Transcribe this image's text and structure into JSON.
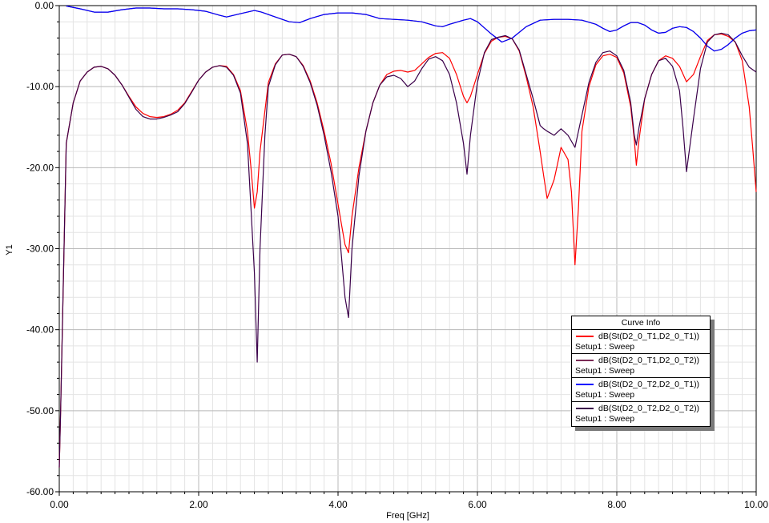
{
  "chart_data": {
    "type": "line",
    "xlabel": "Freq [GHz]",
    "ylabel": "Y1",
    "xlim": [
      0,
      10
    ],
    "ylim": [
      -60,
      0
    ],
    "x_ticks": [
      "0.00",
      "2.00",
      "4.00",
      "6.00",
      "8.00",
      "10.00"
    ],
    "y_ticks": [
      "0.00",
      "-10.00",
      "-20.00",
      "-30.00",
      "-40.00",
      "-50.00",
      "-60.00"
    ],
    "grid": true,
    "legend_title": "Curve Info",
    "legend_position": "bottom-right",
    "series": [
      {
        "name": "dB(St(D2_0_T1,D2_0_T1))",
        "sub": "Setup1 : Sweep",
        "color": "#ff0000",
        "x": [
          0,
          0.02,
          0.1,
          0.2,
          0.3,
          0.4,
          0.5,
          0.6,
          0.7,
          0.8,
          0.9,
          1.0,
          1.1,
          1.2,
          1.3,
          1.4,
          1.5,
          1.6,
          1.7,
          1.8,
          1.9,
          2.0,
          2.1,
          2.2,
          2.3,
          2.4,
          2.5,
          2.6,
          2.7,
          2.75,
          2.8,
          2.84,
          2.88,
          2.95,
          3.0,
          3.1,
          3.2,
          3.3,
          3.4,
          3.5,
          3.6,
          3.7,
          3.8,
          3.9,
          4.0,
          4.05,
          4.1,
          4.15,
          4.2,
          4.3,
          4.4,
          4.5,
          4.6,
          4.7,
          4.8,
          4.9,
          5.0,
          5.1,
          5.2,
          5.3,
          5.4,
          5.5,
          5.6,
          5.7,
          5.8,
          5.85,
          5.9,
          6.0,
          6.1,
          6.2,
          6.3,
          6.4,
          6.5,
          6.6,
          6.7,
          6.8,
          6.9,
          6.95,
          7.0,
          7.1,
          7.15,
          7.2,
          7.3,
          7.35,
          7.4,
          7.45,
          7.5,
          7.6,
          7.7,
          7.8,
          7.9,
          8.0,
          8.1,
          8.2,
          8.25,
          8.28,
          8.32,
          8.4,
          8.5,
          8.6,
          8.7,
          8.8,
          8.9,
          9.0,
          9.1,
          9.2,
          9.3,
          9.4,
          9.5,
          9.6,
          9.7,
          9.8,
          9.9,
          9.95,
          10.0
        ],
        "y": [
          -57,
          -50,
          -17,
          -12,
          -9.3,
          -8.2,
          -7.6,
          -7.5,
          -7.8,
          -8.6,
          -9.8,
          -11.2,
          -12.5,
          -13.3,
          -13.7,
          -13.8,
          -13.7,
          -13.4,
          -12.9,
          -12,
          -10.6,
          -9.2,
          -8.2,
          -7.6,
          -7.4,
          -7.5,
          -8.5,
          -10.5,
          -15.5,
          -20,
          -25,
          -23,
          -18,
          -13,
          -9.5,
          -7.2,
          -6.1,
          -6.0,
          -6.3,
          -7.4,
          -9.3,
          -12,
          -15.5,
          -19.5,
          -24.5,
          -27,
          -29.5,
          -30.5,
          -26,
          -20,
          -15.5,
          -12,
          -9.8,
          -8.5,
          -8.1,
          -8.0,
          -8.2,
          -8.0,
          -7.2,
          -6.4,
          -5.9,
          -5.8,
          -6.5,
          -8.5,
          -11.2,
          -12,
          -11.2,
          -8.5,
          -5.9,
          -4.4,
          -3.9,
          -3.8,
          -4.1,
          -5.6,
          -8.8,
          -12.5,
          -18,
          -21,
          -23.8,
          -21.5,
          -19.5,
          -17.5,
          -19,
          -23,
          -32,
          -25,
          -15.5,
          -10,
          -7.3,
          -6.2,
          -6.0,
          -6.4,
          -8.3,
          -12.5,
          -16.5,
          -19.7,
          -16.5,
          -11.5,
          -8.5,
          -6.8,
          -6.2,
          -6.5,
          -7.5,
          -9.4,
          -8.5,
          -6.3,
          -4.3,
          -3.6,
          -3.5,
          -3.8,
          -4.5,
          -6.8,
          -12.5,
          -17.5,
          -23
        ]
      },
      {
        "name": "dB(St(D2_0_T1,D2_0_T2))",
        "sub": "Setup1 : Sweep",
        "color": "#7b2a55",
        "x": [
          0.1,
          0.3,
          0.5,
          0.7,
          0.9,
          1.1,
          1.3,
          1.5,
          1.7,
          1.9,
          2.1,
          2.3,
          2.4,
          2.6,
          2.8,
          2.9,
          3.1,
          3.3,
          3.45,
          3.6,
          3.8,
          4.0,
          4.2,
          4.4,
          4.6,
          4.8,
          5.0,
          5.2,
          5.4,
          5.5,
          5.6,
          5.8,
          5.9,
          6.0,
          6.2,
          6.35,
          6.5,
          6.7,
          6.9,
          7.1,
          7.3,
          7.5,
          7.7,
          7.8,
          7.9,
          8.0,
          8.1,
          8.2,
          8.3,
          8.4,
          8.5,
          8.6,
          8.7,
          8.8,
          8.9,
          9.0,
          9.1,
          9.2,
          9.3,
          9.4,
          9.5,
          9.6,
          9.7,
          9.8,
          9.9,
          10.0
        ],
        "y": [
          -0.05,
          -0.4,
          -0.8,
          -0.8,
          -0.5,
          -0.3,
          -0.3,
          -0.4,
          -0.4,
          -0.5,
          -0.7,
          -1.2,
          -1.4,
          -1.0,
          -0.6,
          -0.8,
          -1.4,
          -2.0,
          -2.1,
          -1.6,
          -1.1,
          -0.9,
          -0.9,
          -1.1,
          -1.6,
          -1.7,
          -1.8,
          -2.0,
          -2.5,
          -2.6,
          -2.3,
          -1.8,
          -1.6,
          -2.0,
          -3.5,
          -4.5,
          -4.0,
          -2.6,
          -1.8,
          -1.7,
          -1.7,
          -1.8,
          -2.3,
          -2.8,
          -3.2,
          -3.0,
          -2.5,
          -2.1,
          -2.1,
          -2.4,
          -3.0,
          -3.4,
          -3.3,
          -2.8,
          -2.6,
          -2.7,
          -3.2,
          -4.0,
          -5.0,
          -5.6,
          -5.4,
          -4.8,
          -4.0,
          -3.4,
          -3.1,
          -3.0
        ]
      },
      {
        "name": "dB(St(D2_0_T2,D2_0_T1))",
        "sub": "Setup1 : Sweep",
        "color": "#0000ff",
        "x": [
          0.1,
          0.3,
          0.5,
          0.7,
          0.9,
          1.1,
          1.3,
          1.5,
          1.7,
          1.9,
          2.1,
          2.3,
          2.4,
          2.6,
          2.8,
          2.9,
          3.1,
          3.3,
          3.45,
          3.6,
          3.8,
          4.0,
          4.2,
          4.4,
          4.6,
          4.8,
          5.0,
          5.2,
          5.4,
          5.5,
          5.6,
          5.8,
          5.9,
          6.0,
          6.2,
          6.35,
          6.5,
          6.7,
          6.9,
          7.1,
          7.3,
          7.5,
          7.7,
          7.8,
          7.9,
          8.0,
          8.1,
          8.2,
          8.3,
          8.4,
          8.5,
          8.6,
          8.7,
          8.8,
          8.9,
          9.0,
          9.1,
          9.2,
          9.3,
          9.4,
          9.5,
          9.6,
          9.7,
          9.8,
          9.9,
          10.0
        ],
        "y": [
          -0.05,
          -0.4,
          -0.8,
          -0.8,
          -0.5,
          -0.3,
          -0.3,
          -0.4,
          -0.4,
          -0.5,
          -0.7,
          -1.2,
          -1.4,
          -1.0,
          -0.6,
          -0.8,
          -1.4,
          -2.0,
          -2.1,
          -1.6,
          -1.1,
          -0.9,
          -0.9,
          -1.1,
          -1.6,
          -1.7,
          -1.8,
          -2.0,
          -2.5,
          -2.6,
          -2.3,
          -1.8,
          -1.6,
          -2.0,
          -3.5,
          -4.5,
          -4.0,
          -2.6,
          -1.8,
          -1.7,
          -1.7,
          -1.8,
          -2.3,
          -2.8,
          -3.2,
          -3.0,
          -2.5,
          -2.1,
          -2.1,
          -2.4,
          -3.0,
          -3.4,
          -3.3,
          -2.8,
          -2.6,
          -2.7,
          -3.2,
          -4.0,
          -5.0,
          -5.6,
          -5.4,
          -4.8,
          -4.0,
          -3.4,
          -3.1,
          -3.0
        ]
      },
      {
        "name": "dB(St(D2_0_T2,D2_0_T2))",
        "sub": "Setup1 : Sweep",
        "color": "#3a004a",
        "x": [
          0,
          0.02,
          0.1,
          0.2,
          0.3,
          0.4,
          0.5,
          0.6,
          0.7,
          0.8,
          0.9,
          1.0,
          1.1,
          1.2,
          1.3,
          1.4,
          1.5,
          1.6,
          1.7,
          1.8,
          1.9,
          2.0,
          2.1,
          2.2,
          2.3,
          2.4,
          2.5,
          2.6,
          2.7,
          2.75,
          2.8,
          2.84,
          2.88,
          2.95,
          3.0,
          3.1,
          3.2,
          3.3,
          3.4,
          3.5,
          3.6,
          3.7,
          3.8,
          3.9,
          4.0,
          4.05,
          4.1,
          4.15,
          4.2,
          4.3,
          4.4,
          4.5,
          4.6,
          4.7,
          4.8,
          4.9,
          5.0,
          5.1,
          5.2,
          5.3,
          5.4,
          5.5,
          5.6,
          5.7,
          5.8,
          5.85,
          5.9,
          6.0,
          6.1,
          6.2,
          6.3,
          6.4,
          6.5,
          6.6,
          6.7,
          6.8,
          6.9,
          6.95,
          7.0,
          7.1,
          7.2,
          7.3,
          7.4,
          7.5,
          7.6,
          7.7,
          7.8,
          7.9,
          8.0,
          8.1,
          8.2,
          8.25,
          8.28,
          8.32,
          8.4,
          8.5,
          8.6,
          8.7,
          8.8,
          8.9,
          8.95,
          9.0,
          9.1,
          9.2,
          9.3,
          9.4,
          9.5,
          9.6,
          9.7,
          9.8,
          9.9,
          10.0
        ],
        "y": [
          -57,
          -50,
          -17,
          -12,
          -9.3,
          -8.2,
          -7.6,
          -7.5,
          -7.8,
          -8.6,
          -9.8,
          -11.3,
          -12.8,
          -13.7,
          -14.0,
          -14.0,
          -13.8,
          -13.5,
          -13.1,
          -12.1,
          -10.7,
          -9.2,
          -8.2,
          -7.6,
          -7.4,
          -7.6,
          -8.6,
          -10.8,
          -17,
          -25,
          -33,
          -44,
          -30,
          -16,
          -10,
          -7.3,
          -6.1,
          -6.0,
          -6.3,
          -7.5,
          -9.5,
          -12.3,
          -16,
          -20.5,
          -26,
          -31,
          -36,
          -38.5,
          -30,
          -21,
          -15.5,
          -12,
          -9.8,
          -8.8,
          -8.6,
          -9.0,
          -10.0,
          -9.3,
          -7.8,
          -6.6,
          -6.3,
          -6.8,
          -8.5,
          -12,
          -17,
          -20.8,
          -16,
          -9.5,
          -5.8,
          -4.2,
          -3.9,
          -3.7,
          -4.1,
          -5.5,
          -8.5,
          -11.5,
          -14.8,
          -15.2,
          -15.5,
          -16,
          -15.2,
          -16,
          -17.5,
          -13.5,
          -9.5,
          -7.0,
          -5.8,
          -5.6,
          -6.2,
          -8.0,
          -12,
          -16,
          -17.2,
          -15,
          -11.5,
          -8.5,
          -6.8,
          -6.5,
          -7.5,
          -10.5,
          -15,
          -20.5,
          -14,
          -7.8,
          -4.5,
          -3.6,
          -3.4,
          -3.6,
          -4.5,
          -6.2,
          -7.6,
          -8.2
        ]
      }
    ]
  }
}
